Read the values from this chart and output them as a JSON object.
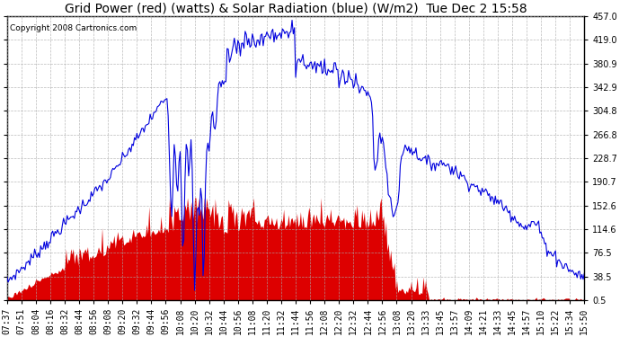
{
  "title": "Grid Power (red) (watts) & Solar Radiation (blue) (W/m2)  Tue Dec 2 15:58",
  "copyright": "Copyright 2008 Cartronics.com",
  "yticks": [
    0.5,
    38.5,
    76.5,
    114.6,
    152.6,
    190.7,
    228.7,
    266.8,
    304.8,
    342.9,
    380.9,
    419.0,
    457.0
  ],
  "ylim": [
    0.5,
    457.0
  ],
  "bg_color": "#ffffff",
  "plot_bg_color": "#ffffff",
  "grid_color": "#aaaaaa",
  "blue_color": "#0000dd",
  "red_color": "#dd0000",
  "title_fontsize": 10,
  "tick_fontsize": 7,
  "copyright_fontsize": 6.5,
  "x_tick_labels": [
    "07:37",
    "07:51",
    "08:04",
    "08:16",
    "08:32",
    "08:44",
    "08:56",
    "09:08",
    "09:20",
    "09:32",
    "09:44",
    "09:56",
    "10:08",
    "10:20",
    "10:32",
    "10:44",
    "10:56",
    "11:08",
    "11:20",
    "11:32",
    "11:44",
    "11:56",
    "12:08",
    "12:20",
    "12:32",
    "12:44",
    "12:56",
    "13:08",
    "13:20",
    "13:33",
    "13:45",
    "13:57",
    "14:09",
    "14:21",
    "14:33",
    "14:45",
    "14:57",
    "15:10",
    "15:22",
    "15:34",
    "15:50"
  ]
}
